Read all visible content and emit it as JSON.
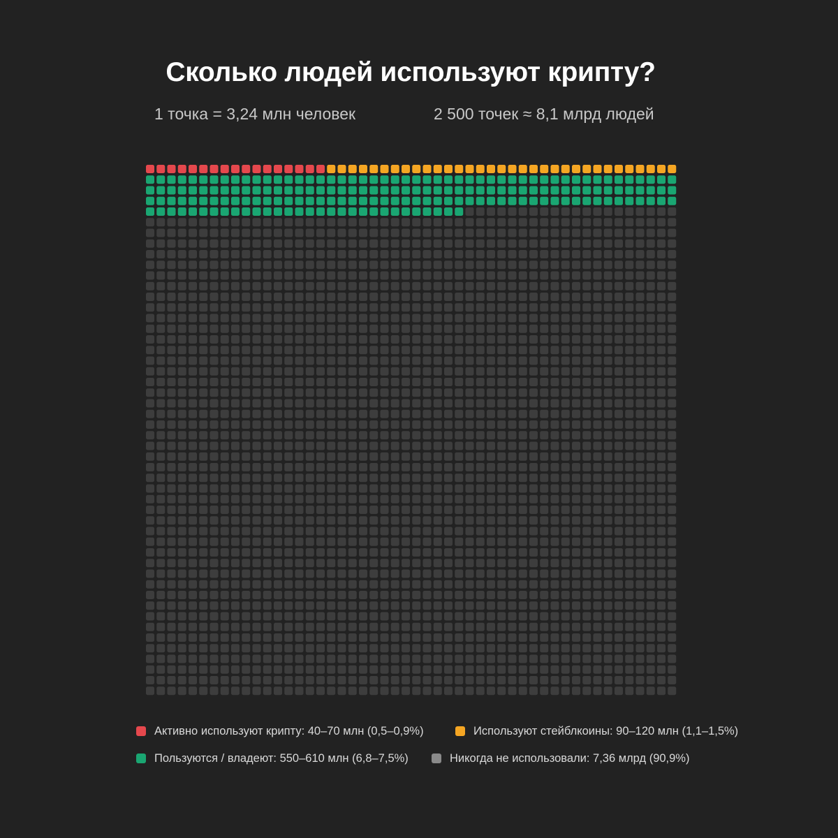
{
  "header": {
    "title": "Сколько людей используют крипту?",
    "subtitle_left": "1 точка = 3,24 млн человек",
    "subtitle_right": "2 500 точек ≈ 8,1 млрд людей"
  },
  "chart_data": {
    "type": "waffle",
    "grid": {
      "rows": 50,
      "columns": 50
    },
    "total_dots": 2500,
    "series": [
      {
        "name": "Активно используют крипту: 40–70 млн (0,5–0,9%)",
        "dots": 17,
        "color": "#e5484d"
      },
      {
        "name": "Используют стейблкоины: 90–120 млн (1,1–1,5%)",
        "dots": 33,
        "color": "#f5a623"
      },
      {
        "name": "Пользуются / владеют: 550–610 млн (6,8–7,5%)",
        "dots": 180,
        "color": "#1aa672"
      },
      {
        "name": "Никогда не использовали: 7,36 млрд (90,9%)",
        "dots": 2270,
        "color": "#3d3d3d"
      }
    ],
    "legend": {
      "placement": "bottom",
      "swatch_colors": [
        "#e5484d",
        "#f5a623",
        "#1aa672",
        "#8a8a8a"
      ]
    }
  }
}
